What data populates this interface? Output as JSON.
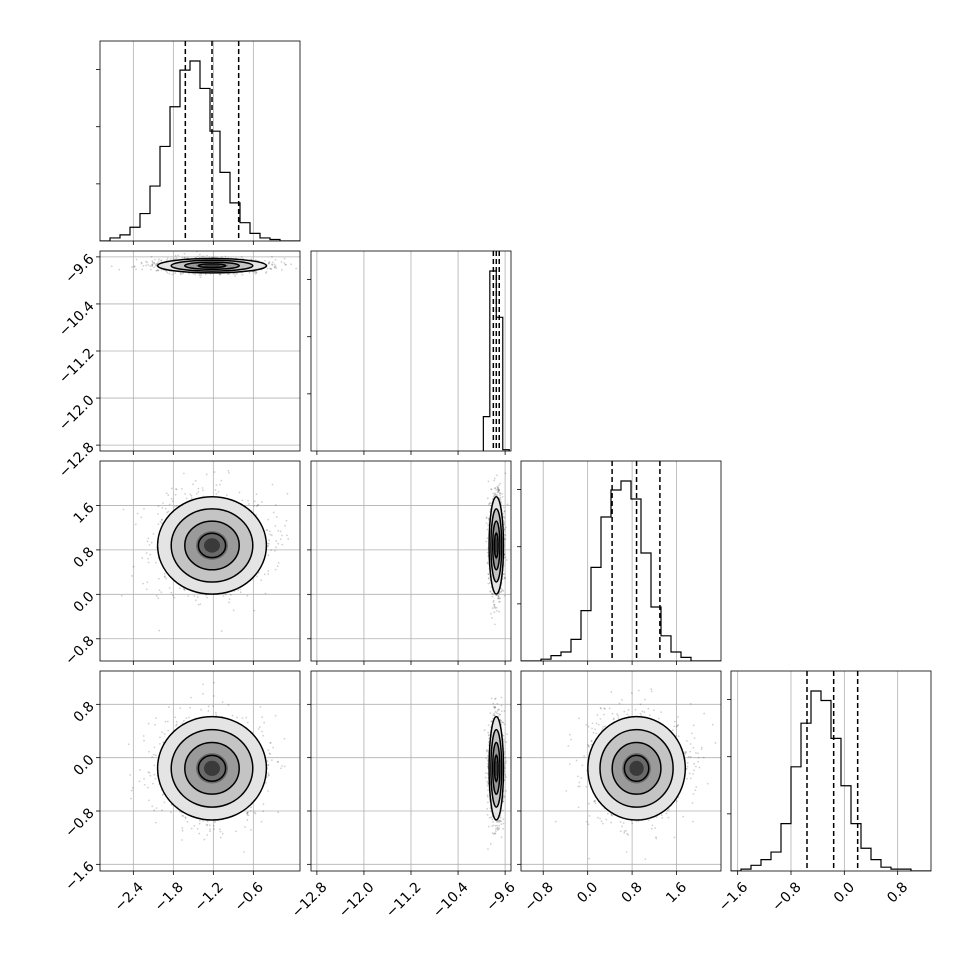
{
  "chart_data": {
    "type": "corner",
    "title": "",
    "parameters": [
      {
        "name": "",
        "range": [
          -2.9,
          0.1
        ],
        "ticks": [
          -2.4,
          -1.8,
          -1.2,
          -0.6
        ],
        "tick_labels": [
          "−2.4",
          "−1.8",
          "−1.2",
          "−0.6"
        ],
        "quantiles": [
          -1.62,
          -1.22,
          -0.82
        ],
        "histogram": {
          "bin_start": -2.9,
          "bin_width": 0.15,
          "counts": [
            0,
            2,
            4,
            9,
            18,
            36,
            62,
            88,
            112,
            118,
            100,
            72,
            45,
            25,
            12,
            5,
            2,
            1,
            0,
            0
          ]
        }
      },
      {
        "name": "",
        "range": [
          -12.9,
          -9.5
        ],
        "ticks": [
          -12.8,
          -12.0,
          -11.2,
          -10.4,
          -9.6
        ],
        "tick_labels": [
          "−12.8",
          "−12.0",
          "−11.2",
          "−10.4",
          "−9.6"
        ],
        "quantiles": [
          -9.8,
          -9.75,
          -9.7
        ],
        "histogram": {
          "bin_start": -9.97,
          "bin_width": 0.11,
          "counts": [
            26,
            136,
            101,
            1
          ]
        }
      },
      {
        "name": "",
        "range": [
          -1.2,
          2.4
        ],
        "ticks": [
          -0.8,
          0.0,
          0.8,
          1.6
        ],
        "tick_labels": [
          "−0.8",
          "0.0",
          "0.8",
          "1.6"
        ],
        "quantiles": [
          0.44,
          0.88,
          1.3
        ],
        "histogram": {
          "bin_start": -1.2,
          "bin_width": 0.18,
          "counts": [
            0,
            0,
            1,
            3,
            5,
            12,
            28,
            52,
            80,
            95,
            100,
            90,
            60,
            30,
            14,
            5,
            2,
            0,
            0,
            0
          ]
        }
      },
      {
        "name": "",
        "range": [
          -1.7,
          1.3
        ],
        "ticks": [
          -1.6,
          -0.8,
          0.0,
          0.8
        ],
        "tick_labels": [
          "−1.6",
          "−0.8",
          "0.0",
          "0.8"
        ],
        "quantiles": [
          -0.56,
          -0.16,
          0.2
        ],
        "histogram": {
          "bin_start": -1.7,
          "bin_width": 0.15,
          "counts": [
            0,
            1,
            3,
            6,
            10,
            25,
            55,
            78,
            95,
            90,
            70,
            45,
            25,
            12,
            6,
            2,
            1,
            1,
            0,
            0
          ]
        }
      }
    ],
    "pair_density": [
      {
        "row": 1,
        "col": 0,
        "center": [
          -1.22,
          -9.75
        ],
        "sigma": [
          0.4,
          0.06
        ],
        "rho": 0.0
      },
      {
        "row": 2,
        "col": 0,
        "center": [
          -1.22,
          0.88
        ],
        "sigma": [
          0.4,
          0.43
        ],
        "rho": 0.0
      },
      {
        "row": 2,
        "col": 1,
        "center": [
          -9.75,
          0.88
        ],
        "sigma": [
          0.06,
          0.43
        ],
        "rho": 0.0
      },
      {
        "row": 3,
        "col": 0,
        "center": [
          -1.22,
          -0.16
        ],
        "sigma": [
          0.4,
          0.38
        ],
        "rho": 0.0
      },
      {
        "row": 3,
        "col": 1,
        "center": [
          -9.75,
          -0.16
        ],
        "sigma": [
          0.06,
          0.38
        ],
        "rho": 0.0
      },
      {
        "row": 3,
        "col": 2,
        "center": [
          0.88,
          -0.16
        ],
        "sigma": [
          0.43,
          0.38
        ],
        "rho": 0.0
      }
    ],
    "contour_levels_sigma": [
      0.5,
      1.0,
      1.5,
      2.0
    ],
    "grid": true,
    "quantile_line_style": "dashed"
  }
}
